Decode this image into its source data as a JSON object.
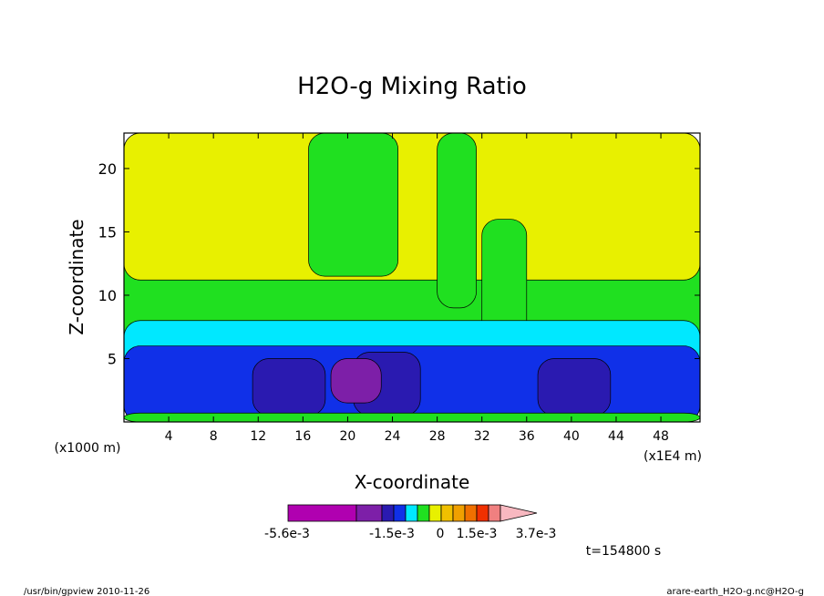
{
  "chart_data": {
    "type": "heatmap",
    "title": "H2O-g Mixing Ratio",
    "xlabel": "X-coordinate",
    "ylabel": "Z-coordinate",
    "x_units_left": "(x1000 m)",
    "x_units_right": "(x1E4 m)",
    "xlim": [
      0,
      51.5
    ],
    "ylim": [
      0,
      22.8
    ],
    "x_ticks": [
      4,
      8,
      12,
      16,
      20,
      24,
      28,
      32,
      36,
      40,
      44,
      48
    ],
    "y_ticks": [
      5,
      10,
      15,
      20
    ],
    "time_label": "t=154800 s",
    "colorbar": {
      "colors": [
        "#b000b0",
        "#7d1fa8",
        "#2a1ab0",
        "#1030e8",
        "#00e8ff",
        "#20e020",
        "#e8f000",
        "#f0c000",
        "#f0a000",
        "#f07000",
        "#f03000",
        "#f08080",
        "#f8b8c0"
      ],
      "labels": [
        "-5.6e-3",
        "-1.5e-3",
        "0",
        "1.5e-3",
        "3.7e-3"
      ]
    },
    "fields": [
      {
        "level": 5,
        "x": 0,
        "z": 0,
        "w": 51.5,
        "h": 22.8
      },
      {
        "level": 6,
        "x": 0,
        "z": 11.2,
        "w": 51.5,
        "h": 11.6
      },
      {
        "level": 5,
        "x": 16.5,
        "z": 11.5,
        "w": 8.0,
        "h": 11.3
      },
      {
        "level": 5,
        "x": 28.0,
        "z": 9.0,
        "w": 3.5,
        "h": 13.8
      },
      {
        "level": 5,
        "x": 32.0,
        "z": 6.0,
        "w": 4.0,
        "h": 10.0
      },
      {
        "level": 4,
        "x": 0,
        "z": 0,
        "w": 51.5,
        "h": 8.0
      },
      {
        "level": 3,
        "x": 0,
        "z": 0,
        "w": 51.5,
        "h": 6.0
      },
      {
        "level": 2,
        "x": 11.5,
        "z": 0.5,
        "w": 6.5,
        "h": 4.5
      },
      {
        "level": 2,
        "x": 20.5,
        "z": 0.5,
        "w": 6.0,
        "h": 5.0
      },
      {
        "level": 2,
        "x": 37.0,
        "z": 0.5,
        "w": 6.5,
        "h": 4.5
      },
      {
        "level": 1,
        "x": 18.5,
        "z": 1.5,
        "w": 4.5,
        "h": 3.5
      },
      {
        "level": 5,
        "x": 0,
        "z": 0,
        "w": 51.5,
        "h": 0.7
      }
    ]
  },
  "footer": {
    "left": "/usr/bin/gpview 2010-11-26",
    "right": "arare-earth_H2O-g.nc@H2O-g"
  }
}
